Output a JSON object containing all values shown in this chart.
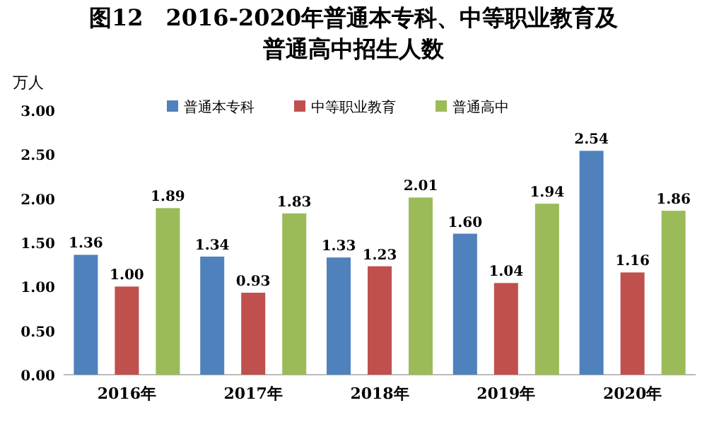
{
  "chart_data": {
    "type": "bar",
    "title": "图12　2016-2020年普通本专科、中等职业教育及普通高中招生人数",
    "ylabel": "万人",
    "categories": [
      "2016年",
      "2017年",
      "2018年",
      "2019年",
      "2020年"
    ],
    "series": [
      {
        "name": "普通本专科",
        "color": "#4f81bd",
        "values": [
          1.36,
          1.34,
          1.33,
          1.6,
          2.54
        ],
        "value_labels": [
          "1.36",
          "1.34",
          "1.33",
          "1.60",
          "2.54"
        ]
      },
      {
        "name": "中等职业教育",
        "color": "#c0504d",
        "values": [
          1.0,
          0.93,
          1.23,
          1.04,
          1.16
        ],
        "value_labels": [
          "1.00",
          "0.93",
          "1.23",
          "1.04",
          "1.16"
        ]
      },
      {
        "name": "普通高中",
        "color": "#9bbb59",
        "values": [
          1.89,
          1.83,
          2.01,
          1.94,
          1.86
        ],
        "value_labels": [
          "1.89",
          "1.83",
          "2.01",
          "1.94",
          "1.86"
        ]
      }
    ],
    "ylim": [
      0,
      3
    ],
    "yticks": [
      {
        "value": 0,
        "label": "0.00"
      },
      {
        "value": 0.5,
        "label": "0.50"
      },
      {
        "value": 1,
        "label": "1.00"
      },
      {
        "value": 1.5,
        "label": "1.50"
      },
      {
        "value": 2,
        "label": "2.00"
      },
      {
        "value": 2.5,
        "label": "2.50"
      },
      {
        "value": 3,
        "label": "3.00"
      }
    ],
    "legend": "top",
    "grid": false
  }
}
